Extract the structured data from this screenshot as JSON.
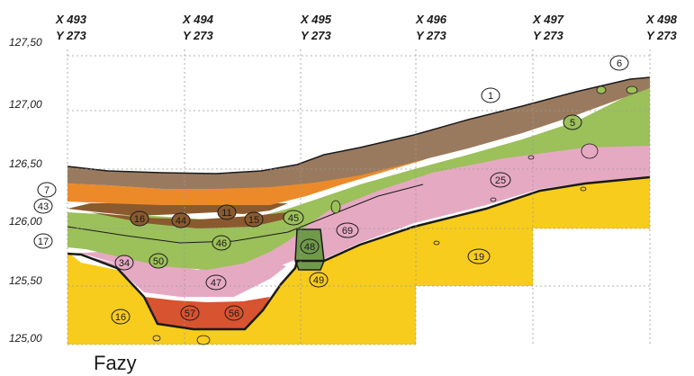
{
  "grid_x": [
    {
      "x": "X 493",
      "y": "Y 273"
    },
    {
      "x": "X 494",
      "y": "Y 273"
    },
    {
      "x": "X 495",
      "y": "Y 273"
    },
    {
      "x": "X 496",
      "y": "Y 273"
    },
    {
      "x": "X 497",
      "y": "Y 273"
    },
    {
      "x": "X 498",
      "y": "Y 273"
    }
  ],
  "elevations": [
    "127,50",
    "127,00",
    "126,50",
    "126,00",
    "125,50",
    "125,00"
  ],
  "layers": [
    "1",
    "5",
    "6",
    "7",
    "11",
    "15",
    "16",
    "16",
    "17",
    "18",
    "19",
    "25",
    "34",
    "43",
    "44",
    "45",
    "46",
    "47",
    "48",
    "49",
    "50",
    "56",
    "57",
    "69"
  ],
  "caption": "Fazy",
  "colors": {
    "topsoil": "#9a7a5e",
    "orange": "#ec8a2a",
    "dark_brown": "#8a5a2e",
    "green": "#9cc05a",
    "dark_green": "#6f9a4a",
    "pink": "#e6a9c2",
    "yellow": "#f7cc1c",
    "red": "#d8532f",
    "outline": "#1a1a1a"
  }
}
